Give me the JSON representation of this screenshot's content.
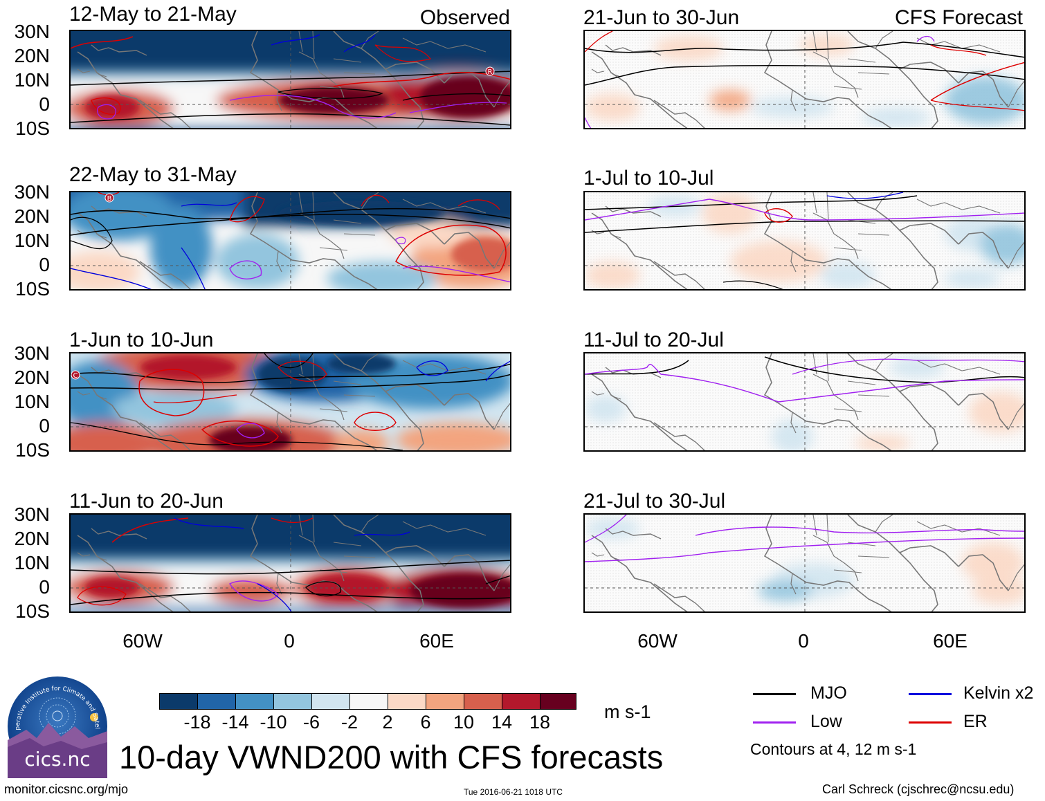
{
  "chart_data": {
    "type": "heatmap",
    "title": "10-day VWND200 with CFS forecasts",
    "variable": "VWND200",
    "units": "m s-1",
    "latitude_labels": [
      "30N",
      "20N",
      "10N",
      "0",
      "10S"
    ],
    "longitude_labels": [
      "60W",
      "0",
      "60E"
    ],
    "colorbar": {
      "ticks": [
        "-18",
        "-14",
        "-10",
        "-6",
        "-2",
        "2",
        "6",
        "10",
        "14",
        "18"
      ],
      "colors": [
        "#0b3a6a",
        "#2165a8",
        "#4391c4",
        "#93c5de",
        "#d1e5f0",
        "#f7f7f7",
        "#fbd9c6",
        "#f3a47f",
        "#d7604d",
        "#b3182c",
        "#67001f"
      ]
    },
    "columns": [
      {
        "header": "Observed",
        "panels": [
          "12-May to 21-May",
          "22-May to 31-May",
          "1-Jun to 10-Jun",
          "11-Jun to 20-Jun"
        ]
      },
      {
        "header": "CFS Forecast",
        "panels": [
          "21-Jun to 30-Jun",
          "1-Jul to 10-Jul",
          "11-Jul to 20-Jul",
          "21-Jul to 30-Jul"
        ]
      }
    ],
    "contour_legend": [
      {
        "label": "MJO",
        "color": "#000000"
      },
      {
        "label": "Kelvin x2",
        "color": "#0000dd"
      },
      {
        "label": "Low",
        "color": "#a020f0"
      },
      {
        "label": "ER",
        "color": "#dd0000"
      }
    ],
    "contour_note": "Contours at 4, 12 m s-1",
    "markers": [
      "R",
      "B",
      "C"
    ]
  },
  "footer": {
    "left": "monitor.cicsnc.org/mjo",
    "center": "Tue 2016-06-21 1018 UTC",
    "right": "Carl Schreck (cjschrec@ncsu.edu)"
  },
  "logo": {
    "name": "cics.nc",
    "ring_text": "Cooperative Institute for Climate and Satellites"
  }
}
